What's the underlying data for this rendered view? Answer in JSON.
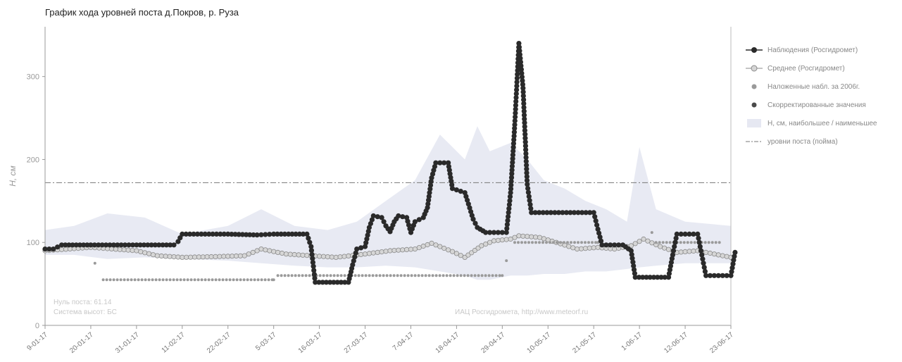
{
  "chart_data": {
    "type": "line",
    "title": "График хода уровней поста д.Покров, р. Руза",
    "ylabel": "Н, см",
    "xlabel": "",
    "ylim": [
      0,
      360
    ],
    "yticks": [
      0,
      100,
      200,
      300
    ],
    "xlim": [
      "2017-01-09",
      "2017-06-23"
    ],
    "x_tick_labels": [
      "9-01-17",
      "20-01-17",
      "31-01-17",
      "11-02-17",
      "22-02-17",
      "5-03-17",
      "16-03-17",
      "27-03-17",
      "7-04-17",
      "18-04-17",
      "29-04-17",
      "10-05-17",
      "21-05-17",
      "1-06-17",
      "12-06-17",
      "23-06-17"
    ],
    "grid": false,
    "legend_position": "right",
    "flood_level": 172,
    "colors": {
      "observed": "#2a2a2a",
      "mean": "#b0b0b0",
      "overlay2006": "#9a9a9a",
      "corrected": "#4a4a4a",
      "band": "#e6e8f2",
      "flood_line": "#777777"
    },
    "series": [
      {
        "name": "Наблюдения (Росгидромет)",
        "style": "line-dark-markers",
        "points": [
          [
            "2017-01-09",
            92
          ],
          [
            "2017-01-11",
            92
          ],
          [
            "2017-01-13",
            97
          ],
          [
            "2017-01-20",
            97
          ],
          [
            "2017-01-31",
            97
          ],
          [
            "2017-02-09",
            97
          ],
          [
            "2017-02-10",
            101
          ],
          [
            "2017-02-11",
            110
          ],
          [
            "2017-02-22",
            110
          ],
          [
            "2017-03-01",
            109
          ],
          [
            "2017-03-05",
            110
          ],
          [
            "2017-03-13",
            110
          ],
          [
            "2017-03-14",
            95
          ],
          [
            "2017-03-15",
            52
          ],
          [
            "2017-03-23",
            52
          ],
          [
            "2017-03-24",
            73
          ],
          [
            "2017-03-25",
            92
          ],
          [
            "2017-03-27",
            95
          ],
          [
            "2017-03-28",
            118
          ],
          [
            "2017-03-29",
            132
          ],
          [
            "2017-03-31",
            130
          ],
          [
            "2017-04-01",
            120
          ],
          [
            "2017-04-02",
            113
          ],
          [
            "2017-04-03",
            125
          ],
          [
            "2017-04-04",
            132
          ],
          [
            "2017-04-06",
            130
          ],
          [
            "2017-04-07",
            112
          ],
          [
            "2017-04-08",
            125
          ],
          [
            "2017-04-10",
            130
          ],
          [
            "2017-04-11",
            142
          ],
          [
            "2017-04-12",
            178
          ],
          [
            "2017-04-13",
            196
          ],
          [
            "2017-04-16",
            196
          ],
          [
            "2017-04-17",
            165
          ],
          [
            "2017-04-20",
            160
          ],
          [
            "2017-04-22",
            128
          ],
          [
            "2017-04-23",
            118
          ],
          [
            "2017-04-25",
            112
          ],
          [
            "2017-04-30",
            112
          ],
          [
            "2017-05-01",
            160
          ],
          [
            "2017-05-02",
            242
          ],
          [
            "2017-05-03",
            340
          ],
          [
            "2017-05-04",
            286
          ],
          [
            "2017-05-05",
            170
          ],
          [
            "2017-05-06",
            136
          ],
          [
            "2017-05-21",
            136
          ],
          [
            "2017-05-22",
            116
          ],
          [
            "2017-05-23",
            97
          ],
          [
            "2017-05-28",
            97
          ],
          [
            "2017-05-30",
            90
          ],
          [
            "2017-05-31",
            58
          ],
          [
            "2017-06-08",
            58
          ],
          [
            "2017-06-09",
            85
          ],
          [
            "2017-06-10",
            110
          ],
          [
            "2017-06-15",
            110
          ],
          [
            "2017-06-16",
            85
          ],
          [
            "2017-06-17",
            60
          ],
          [
            "2017-06-23",
            60
          ],
          [
            "2017-06-24",
            88
          ]
        ]
      },
      {
        "name": "Среднее (Росгидромет)",
        "style": "line-light-markers",
        "points": [
          [
            "2017-01-09",
            90
          ],
          [
            "2017-01-20",
            94
          ],
          [
            "2017-01-31",
            90
          ],
          [
            "2017-02-05",
            84
          ],
          [
            "2017-02-11",
            82
          ],
          [
            "2017-02-20",
            83
          ],
          [
            "2017-02-26",
            84
          ],
          [
            "2017-03-02",
            92
          ],
          [
            "2017-03-08",
            86
          ],
          [
            "2017-03-14",
            84
          ],
          [
            "2017-03-20",
            82
          ],
          [
            "2017-03-27",
            86
          ],
          [
            "2017-04-02",
            90
          ],
          [
            "2017-04-08",
            92
          ],
          [
            "2017-04-12",
            99
          ],
          [
            "2017-04-17",
            89
          ],
          [
            "2017-04-20",
            82
          ],
          [
            "2017-04-24",
            96
          ],
          [
            "2017-04-27",
            102
          ],
          [
            "2017-05-01",
            104
          ],
          [
            "2017-05-03",
            108
          ],
          [
            "2017-05-08",
            106
          ],
          [
            "2017-05-12",
            100
          ],
          [
            "2017-05-17",
            92
          ],
          [
            "2017-05-22",
            94
          ],
          [
            "2017-05-26",
            92
          ],
          [
            "2017-05-30",
            96
          ],
          [
            "2017-06-02",
            104
          ],
          [
            "2017-06-06",
            95
          ],
          [
            "2017-06-10",
            88
          ],
          [
            "2017-06-15",
            90
          ],
          [
            "2017-06-19",
            86
          ],
          [
            "2017-06-23",
            82
          ]
        ]
      },
      {
        "name": "Наложенные набл. за 2006г.",
        "style": "dots-gray",
        "points": [
          [
            "2017-01-21",
            75
          ],
          [
            "2017-01-23",
            55
          ],
          [
            "2017-03-05",
            55
          ],
          [
            "2017-03-06",
            60
          ],
          [
            "2017-04-29",
            60
          ],
          [
            "2017-04-30",
            78
          ],
          [
            "2017-05-02",
            100
          ],
          [
            "2017-05-22",
            100
          ],
          [
            "2017-06-04",
            112
          ],
          [
            "2017-06-05",
            100
          ],
          [
            "2017-06-21",
            100
          ]
        ]
      },
      {
        "name": "Скорректированные значения",
        "style": "dots-dark",
        "points": []
      },
      {
        "name": "Н, см, наибольшее / наименьшее",
        "style": "band",
        "x": [
          "2017-01-09",
          "2017-01-16",
          "2017-01-24",
          "2017-02-02",
          "2017-02-11",
          "2017-02-22",
          "2017-03-02",
          "2017-03-10",
          "2017-03-18",
          "2017-03-25",
          "2017-04-01",
          "2017-04-08",
          "2017-04-14",
          "2017-04-20",
          "2017-04-23",
          "2017-04-26",
          "2017-05-01",
          "2017-05-05",
          "2017-05-09",
          "2017-05-14",
          "2017-05-19",
          "2017-05-24",
          "2017-05-29",
          "2017-06-01",
          "2017-06-05",
          "2017-06-12",
          "2017-06-23"
        ],
        "max": [
          115,
          120,
          135,
          130,
          110,
          120,
          140,
          120,
          115,
          125,
          150,
          175,
          230,
          200,
          240,
          210,
          220,
          200,
          175,
          165,
          150,
          140,
          125,
          215,
          140,
          125,
          120
        ],
        "min": [
          85,
          85,
          80,
          82,
          80,
          78,
          75,
          72,
          70,
          70,
          72,
          70,
          65,
          60,
          55,
          55,
          60,
          60,
          62,
          62,
          65,
          65,
          68,
          70,
          72,
          75,
          75
        ]
      },
      {
        "name": "уровни поста (пойма)",
        "style": "dash-dot"
      }
    ],
    "annotations": [
      "Нуль поста: 61.14",
      "Система высот: БС",
      "ИАЦ Росгидромета, http://www.meteorf.ru"
    ]
  }
}
